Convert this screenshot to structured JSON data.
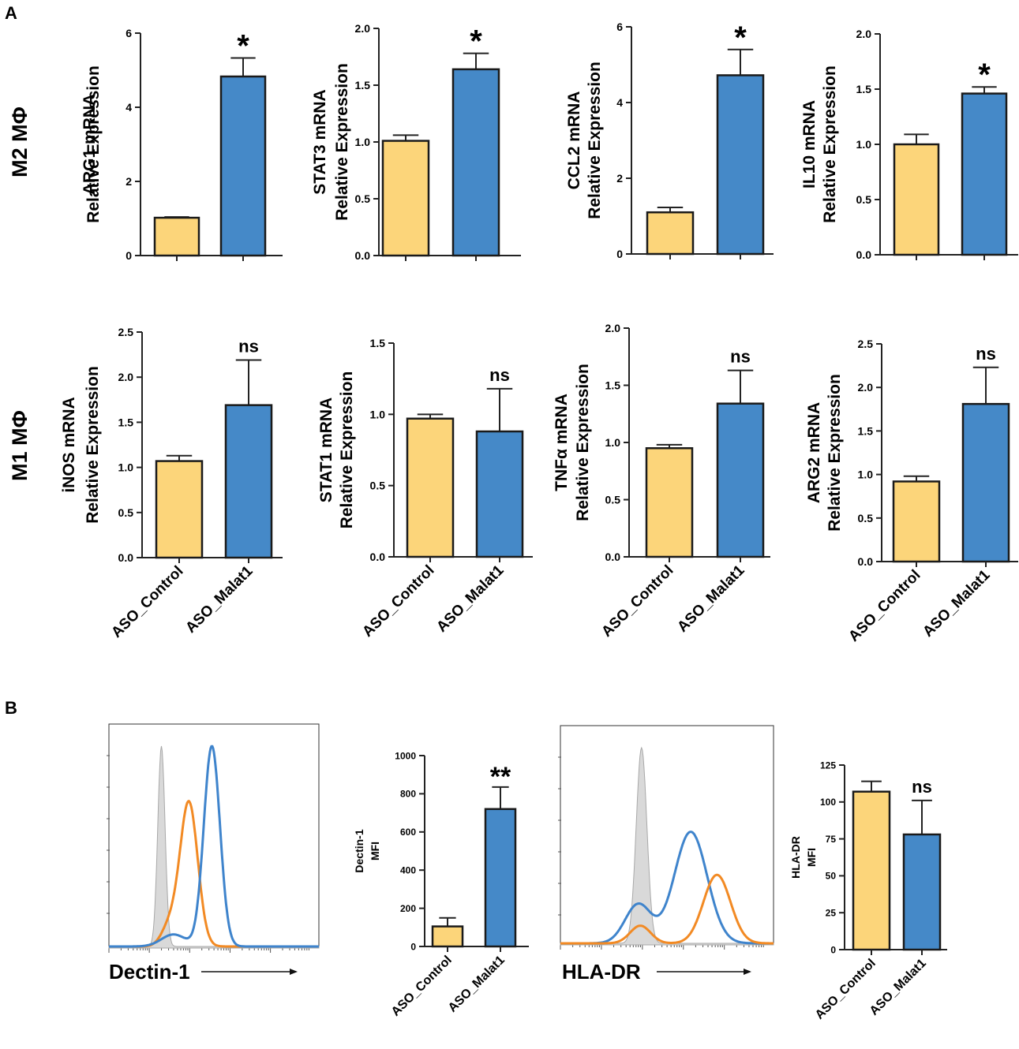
{
  "figure": {
    "panel_a_label": "A",
    "panel_b_label": "B",
    "row_labels": {
      "m2": {
        "text": "M2 MΦ",
        "color": "#2e4f9e"
      },
      "m1": {
        "text": "M1 MΦ",
        "color": "#e02020"
      }
    },
    "colors": {
      "control": "#fcd57a",
      "malat1": "#4589c8",
      "edge": "#1a1a1a",
      "hist_control": "#c8c8c8",
      "hist_orange": "#f28a24",
      "hist_blue": "#3f84cc"
    },
    "group_labels": [
      "ASO_Control",
      "ASO_Malat1"
    ]
  },
  "chart_data": [
    {
      "id": "arg1",
      "type": "bar",
      "ylabel": [
        "ARG1 mRNA",
        "Relative Expression"
      ],
      "categories": [
        "ASO_Control",
        "ASO_Malat1"
      ],
      "values": [
        1.02,
        4.83
      ],
      "errors": [
        0.02,
        0.5
      ],
      "yticks": [
        "0",
        "2",
        "4",
        "6"
      ],
      "tickvals": [
        0,
        2,
        4,
        6
      ],
      "ylim": [
        0,
        6
      ],
      "annotation": "*",
      "show_xlabels": false
    },
    {
      "id": "stat3",
      "type": "bar",
      "ylabel": [
        "STAT3 mRNA",
        "Relative Expression"
      ],
      "categories": [
        "ASO_Control",
        "ASO_Malat1"
      ],
      "values": [
        1.01,
        1.64
      ],
      "errors": [
        0.05,
        0.14
      ],
      "yticks": [
        "0.0",
        "0.5",
        "1.0",
        "1.5",
        "2.0"
      ],
      "tickvals": [
        0,
        0.5,
        1,
        1.5,
        2
      ],
      "ylim": [
        0,
        2
      ],
      "annotation": "*",
      "show_xlabels": false
    },
    {
      "id": "ccl2",
      "type": "bar",
      "ylabel": [
        "CCL2 mRNA",
        "Relative Expression"
      ],
      "categories": [
        "ASO_Control",
        "ASO_Malat1"
      ],
      "values": [
        1.1,
        4.72
      ],
      "errors": [
        0.13,
        0.68
      ],
      "yticks": [
        "0",
        "2",
        "4",
        "6"
      ],
      "tickvals": [
        0,
        2,
        4,
        6
      ],
      "ylim": [
        0,
        6
      ],
      "annotation": "*",
      "show_xlabels": false
    },
    {
      "id": "il10",
      "type": "bar",
      "ylabel": [
        "IL10 mRNA",
        "Relative Expression"
      ],
      "categories": [
        "ASO_Control",
        "ASO_Malat1"
      ],
      "values": [
        1.0,
        1.46
      ],
      "errors": [
        0.09,
        0.06
      ],
      "yticks": [
        "0.0",
        "0.5",
        "1.0",
        "1.5",
        "2.0"
      ],
      "tickvals": [
        0,
        0.5,
        1,
        1.5,
        2
      ],
      "ylim": [
        0,
        2
      ],
      "annotation": "*",
      "show_xlabels": false
    },
    {
      "id": "inos",
      "type": "bar",
      "ylabel": [
        "iNOS mRNA",
        "Relative Expression"
      ],
      "categories": [
        "ASO_Control",
        "ASO_Malat1"
      ],
      "values": [
        1.07,
        1.69
      ],
      "errors": [
        0.06,
        0.5
      ],
      "yticks": [
        "0.0",
        "0.5",
        "1.0",
        "1.5",
        "2.0",
        "2.5"
      ],
      "tickvals": [
        0,
        0.5,
        1,
        1.5,
        2,
        2.5
      ],
      "ylim": [
        0,
        2.5
      ],
      "annotation": "ns",
      "show_xlabels": true
    },
    {
      "id": "stat1",
      "type": "bar",
      "ylabel": [
        "STAT1 mRNA",
        "Relative Expression"
      ],
      "categories": [
        "ASO_Control",
        "ASO_Malat1"
      ],
      "values": [
        0.97,
        0.88
      ],
      "errors": [
        0.03,
        0.3
      ],
      "yticks": [
        "0.0",
        "0.5",
        "1.0",
        "1.5"
      ],
      "tickvals": [
        0,
        0.5,
        1,
        1.5
      ],
      "ylim": [
        0,
        1.5
      ],
      "annotation": "ns",
      "show_xlabels": true
    },
    {
      "id": "tnfa",
      "type": "bar",
      "ylabel": [
        "TNFα mRNA",
        "Relative Expression"
      ],
      "categories": [
        "ASO_Control",
        "ASO_Malat1"
      ],
      "values": [
        0.95,
        1.34
      ],
      "errors": [
        0.03,
        0.29
      ],
      "yticks": [
        "0.0",
        "0.5",
        "1.0",
        "1.5",
        "2.0"
      ],
      "tickvals": [
        0,
        0.5,
        1,
        1.5,
        2
      ],
      "ylim": [
        0,
        2
      ],
      "annotation": "ns",
      "show_xlabels": true
    },
    {
      "id": "arg2",
      "type": "bar",
      "ylabel": [
        "ARG2 mRNA",
        "Relative Expression"
      ],
      "categories": [
        "ASO_Control",
        "ASO_Malat1"
      ],
      "values": [
        0.92,
        1.81
      ],
      "errors": [
        0.06,
        0.42
      ],
      "yticks": [
        "0.0",
        "0.5",
        "1.0",
        "1.5",
        "2.0",
        "2.5"
      ],
      "tickvals": [
        0,
        0.5,
        1,
        1.5,
        2,
        2.5
      ],
      "ylim": [
        0,
        2.5
      ],
      "annotation": "ns",
      "show_xlabels": true
    },
    {
      "id": "dectin1_mfi",
      "type": "bar",
      "ylabel": [
        "Dectin-1",
        "MFI"
      ],
      "categories": [
        "ASO_Control",
        "ASO_Malat1"
      ],
      "values": [
        105,
        720
      ],
      "errors": [
        45,
        115
      ],
      "yticks": [
        "0",
        "200",
        "400",
        "600",
        "800",
        "1000"
      ],
      "tickvals": [
        0,
        200,
        400,
        600,
        800,
        1000
      ],
      "ylim": [
        0,
        1000
      ],
      "annotation": "**",
      "show_xlabels": true
    },
    {
      "id": "hladr_mfi",
      "type": "bar",
      "ylabel": [
        "HLA-DR",
        "MFI"
      ],
      "categories": [
        "ASO_Control",
        "ASO_Malat1"
      ],
      "values": [
        107,
        78
      ],
      "errors": [
        7,
        23
      ],
      "yticks": [
        "0",
        "25",
        "50",
        "75",
        "100",
        "125"
      ],
      "tickvals": [
        0,
        25,
        50,
        75,
        100,
        125
      ],
      "ylim": [
        0,
        125
      ],
      "annotation": "ns",
      "show_xlabels": true
    },
    {
      "id": "dectin1_hist",
      "type": "histogram",
      "xlabel": "Dectin-1",
      "series": [
        {
          "name": "isotype",
          "fill": true,
          "peaks": [
            {
              "mu": 1.3,
              "sigma": 0.09,
              "h": 1.0
            }
          ]
        },
        {
          "name": "orange",
          "peaks": [
            {
              "mu": 1.98,
              "sigma": 0.22,
              "h": 0.72
            },
            {
              "mu": 1.5,
              "sigma": 0.2,
              "h": 0.1
            }
          ]
        },
        {
          "name": "blue",
          "peaks": [
            {
              "mu": 2.55,
              "sigma": 0.2,
              "h": 1.0
            },
            {
              "mu": 1.6,
              "sigma": 0.3,
              "h": 0.06
            }
          ]
        }
      ]
    },
    {
      "id": "hladr_hist",
      "type": "histogram",
      "xlabel": "HLA-DR",
      "series": [
        {
          "name": "isotype",
          "fill": true,
          "peaks": [
            {
              "mu": 1.98,
              "sigma": 0.13,
              "h": 1.0
            }
          ]
        },
        {
          "name": "blue",
          "peaks": [
            {
              "mu": 3.18,
              "sigma": 0.4,
              "h": 0.57
            },
            {
              "mu": 1.9,
              "sigma": 0.32,
              "h": 0.2
            }
          ]
        },
        {
          "name": "orange",
          "peaks": [
            {
              "mu": 3.82,
              "sigma": 0.33,
              "h": 0.35
            },
            {
              "mu": 1.95,
              "sigma": 0.25,
              "h": 0.09
            }
          ]
        }
      ]
    }
  ]
}
